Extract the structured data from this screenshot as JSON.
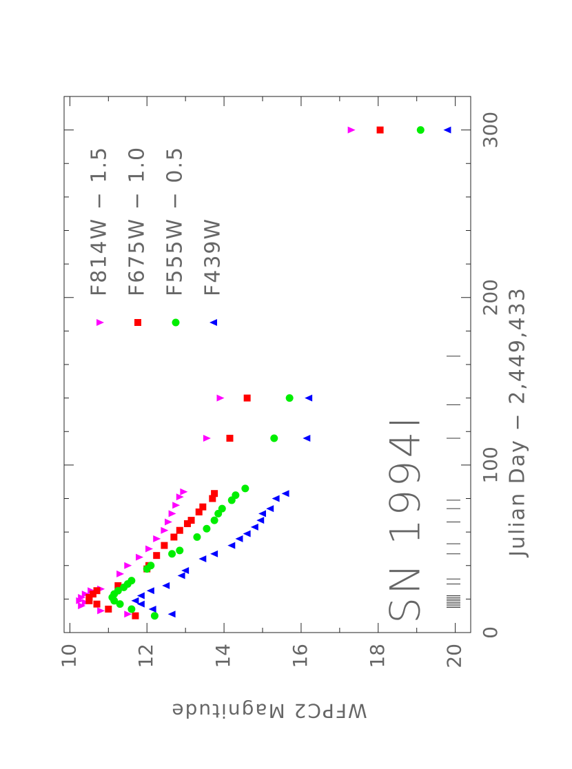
{
  "chart_data": {
    "type": "scatter",
    "x_label": "Julian Day − 2,449,433",
    "y_label": "WFPC2 Magnitude",
    "annotation": "SN 1994I",
    "xlim": [
      0,
      320
    ],
    "xticks": [
      0,
      100,
      200,
      300
    ],
    "xminorticks": [
      20,
      40,
      60,
      80,
      120,
      140,
      160,
      180,
      220,
      240,
      260,
      280,
      320
    ],
    "ylim": [
      9.85,
      20.4
    ],
    "y_inverted": true,
    "yticks": [
      10,
      12,
      14,
      16,
      18,
      20
    ],
    "yminorticks": [
      11,
      13,
      15,
      17,
      19
    ],
    "legend": "upper right",
    "epochs": [
      15,
      16,
      17,
      18,
      19,
      20,
      21,
      22,
      29,
      32,
      47,
      53,
      66,
      74,
      79,
      116,
      136,
      165
    ],
    "series": [
      {
        "name": "F814W − 1.5",
        "color": "#ff00ff",
        "marker": "triangle-down",
        "x": [
          11,
          13,
          16,
          18,
          19,
          21,
          23,
          25,
          26,
          35,
          40,
          45,
          50,
          56,
          61,
          66,
          71,
          76,
          81,
          84,
          116,
          140,
          300
        ],
        "values": [
          11.5,
          10.8,
          10.3,
          10.4,
          10.25,
          10.3,
          10.4,
          10.55,
          10.8,
          11.3,
          11.5,
          11.8,
          12.05,
          12.25,
          12.45,
          12.55,
          12.65,
          12.75,
          12.85,
          12.95,
          13.55,
          13.9,
          17.3
        ]
      },
      {
        "name": "F675W − 1.0",
        "color": "#ff0000",
        "marker": "square",
        "x": [
          10,
          14,
          17,
          19,
          21,
          23,
          25,
          28,
          38,
          40,
          46,
          52,
          57,
          61,
          65,
          67,
          72,
          75,
          80,
          83,
          116,
          140,
          300
        ],
        "values": [
          11.7,
          11.0,
          10.7,
          10.5,
          10.5,
          10.6,
          10.7,
          11.25,
          12.0,
          12.05,
          12.25,
          12.45,
          12.7,
          12.85,
          13.05,
          13.15,
          13.35,
          13.45,
          13.7,
          13.75,
          14.15,
          14.6,
          18.05
        ]
      },
      {
        "name": "F555W − 0.5",
        "color": "#00ee00",
        "marker": "circle",
        "x": [
          10,
          14,
          17,
          19,
          21,
          23,
          25,
          27,
          29,
          31,
          38,
          40,
          47,
          49,
          57,
          62,
          67,
          71,
          74,
          79,
          82,
          86,
          116,
          140,
          300
        ],
        "values": [
          12.2,
          11.6,
          11.3,
          11.15,
          11.1,
          11.15,
          11.25,
          11.4,
          11.5,
          11.6,
          12.0,
          12.1,
          12.65,
          12.85,
          13.3,
          13.55,
          13.75,
          13.85,
          13.95,
          14.2,
          14.3,
          14.55,
          15.3,
          15.7,
          19.1
        ]
      },
      {
        "name": "F439W",
        "color": "#0000ff",
        "marker": "triangle-up",
        "x": [
          11,
          14,
          17,
          19,
          22,
          25,
          28,
          34,
          37,
          44,
          47,
          52,
          56,
          59,
          63,
          67,
          71,
          74,
          80,
          83,
          116,
          140,
          300
        ],
        "values": [
          12.65,
          12.15,
          11.85,
          11.7,
          11.85,
          12.1,
          12.5,
          12.9,
          13.0,
          13.45,
          13.75,
          14.2,
          14.4,
          14.6,
          14.8,
          14.95,
          15.0,
          15.2,
          15.35,
          15.6,
          16.15,
          16.2,
          19.8
        ]
      }
    ]
  }
}
